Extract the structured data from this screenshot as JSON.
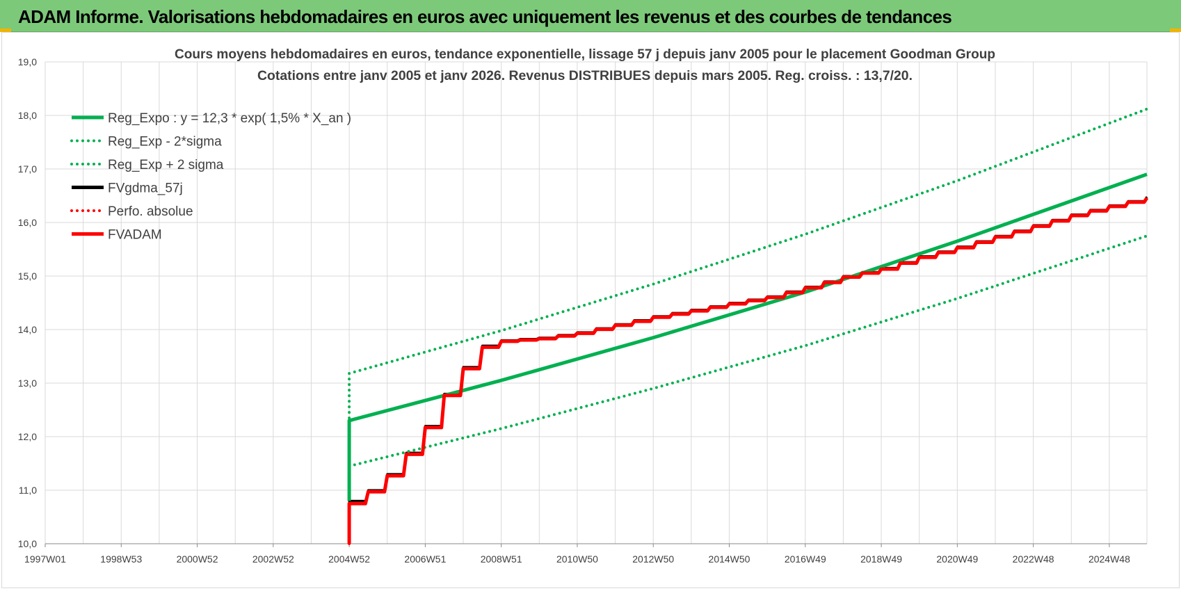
{
  "banner": {
    "title": "ADAM Informe. Valorisations hebdomadaires en euros avec uniquement les revenus et des courbes de tendances"
  },
  "colors": {
    "banner_bg": "#7dc97a",
    "green": "#00b050",
    "black": "#000000",
    "red": "#ff0000",
    "grid": "#d9d9d9"
  },
  "chart_data": {
    "type": "line",
    "title": "Cours moyens hebdomadaires en euros, tendance exponentielle, lissage 57 j depuis janv 2005  pour le placement Goodman Group",
    "subtitle": "Cotations entre janv 2005 et janv 2026. Revenus DISTRIBUES depuis mars 2005.  Reg. croiss. : 13,7/20.",
    "xlabel": "",
    "ylabel": "",
    "ylim": [
      10,
      19
    ],
    "yticks": [
      "10,0",
      "11,0",
      "12,0",
      "13,0",
      "14,0",
      "15,0",
      "16,0",
      "17,0",
      "18,0",
      "19,0"
    ],
    "xlim": [
      1997.0,
      2025.99
    ],
    "xticks": [
      {
        "x": 1997.0,
        "label": "1997W01"
      },
      {
        "x": 1999.0,
        "label": "1998W53"
      },
      {
        "x": 2001.0,
        "label": "2000W52"
      },
      {
        "x": 2003.0,
        "label": "2002W52"
      },
      {
        "x": 2005.0,
        "label": "2004W52"
      },
      {
        "x": 2007.0,
        "label": "2006W51"
      },
      {
        "x": 2009.0,
        "label": "2008W51"
      },
      {
        "x": 2011.0,
        "label": "2010W50"
      },
      {
        "x": 2013.0,
        "label": "2012W50"
      },
      {
        "x": 2015.0,
        "label": "2014W50"
      },
      {
        "x": 2017.0,
        "label": "2016W49"
      },
      {
        "x": 2019.0,
        "label": "2018W49"
      },
      {
        "x": 2021.0,
        "label": "2020W49"
      },
      {
        "x": 2023.0,
        "label": "2022W48"
      },
      {
        "x": 2025.0,
        "label": "2024W48"
      }
    ],
    "grid": true,
    "legend_position": "top-left",
    "series": [
      {
        "name": "Reg_Expo : y = 12,3 * exp( 1,5% *  X_an )",
        "color": "#00b050",
        "style": "solid",
        "points": [
          [
            2005.0,
            10.8
          ],
          [
            2005.0,
            12.3
          ],
          [
            2009.0,
            13.05
          ],
          [
            2013.0,
            13.85
          ],
          [
            2017.0,
            14.7
          ],
          [
            2021.0,
            15.65
          ],
          [
            2025.99,
            16.9
          ]
        ]
      },
      {
        "name": "Reg_Exp - 2*sigma",
        "color": "#00b050",
        "style": "dotted",
        "points": [
          [
            2005.0,
            11.45
          ],
          [
            2009.0,
            12.15
          ],
          [
            2013.0,
            12.9
          ],
          [
            2017.0,
            13.7
          ],
          [
            2021.0,
            14.58
          ],
          [
            2025.99,
            15.75
          ]
        ]
      },
      {
        "name": "Reg_Exp + 2 sigma",
        "color": "#00b050",
        "style": "dotted",
        "points": [
          [
            2005.0,
            12.35
          ],
          [
            2005.0,
            13.18
          ],
          [
            2009.0,
            13.98
          ],
          [
            2013.0,
            14.85
          ],
          [
            2017.0,
            15.78
          ],
          [
            2021.0,
            16.78
          ],
          [
            2025.99,
            18.12
          ]
        ]
      },
      {
        "name": "FVgdma_57j",
        "color": "#000000",
        "style": "solid",
        "points": [
          [
            2005.0,
            10.0
          ],
          [
            2005.0,
            10.8
          ],
          [
            2005.5,
            11.0
          ],
          [
            2006.0,
            11.3
          ],
          [
            2006.5,
            11.7
          ],
          [
            2007.0,
            12.2
          ],
          [
            2007.5,
            12.8
          ],
          [
            2008.0,
            13.3
          ],
          [
            2008.5,
            13.7
          ],
          [
            2009.0,
            13.8
          ],
          [
            2010.0,
            13.85
          ],
          [
            2011.0,
            13.95
          ],
          [
            2012.0,
            14.1
          ],
          [
            2013.0,
            14.25
          ],
          [
            2014.0,
            14.37
          ],
          [
            2015.0,
            14.5
          ],
          [
            2016.0,
            14.62
          ],
          [
            2017.0,
            14.8
          ],
          [
            2018.0,
            15.0
          ],
          [
            2019.0,
            15.15
          ],
          [
            2020.0,
            15.37
          ],
          [
            2021.0,
            15.55
          ],
          [
            2022.0,
            15.75
          ],
          [
            2023.0,
            15.95
          ],
          [
            2024.0,
            16.15
          ],
          [
            2025.0,
            16.32
          ],
          [
            2025.99,
            16.48
          ]
        ]
      },
      {
        "name": "Perfo. absolue",
        "color": "#ff0000",
        "style": "dotted",
        "points": [
          [
            2005.0,
            10.0
          ],
          [
            2005.0,
            10.75
          ],
          [
            2005.5,
            10.97
          ],
          [
            2006.0,
            11.27
          ],
          [
            2006.5,
            11.67
          ],
          [
            2007.0,
            12.17
          ],
          [
            2007.5,
            12.77
          ],
          [
            2008.0,
            13.27
          ],
          [
            2008.5,
            13.67
          ],
          [
            2009.0,
            13.78
          ],
          [
            2010.0,
            13.83
          ],
          [
            2011.0,
            13.93
          ],
          [
            2012.0,
            14.08
          ],
          [
            2013.0,
            14.23
          ],
          [
            2014.0,
            14.35
          ],
          [
            2015.0,
            14.48
          ],
          [
            2016.0,
            14.6
          ],
          [
            2017.0,
            14.78
          ],
          [
            2018.0,
            14.98
          ],
          [
            2019.0,
            15.13
          ],
          [
            2020.0,
            15.35
          ],
          [
            2021.0,
            15.53
          ],
          [
            2022.0,
            15.73
          ],
          [
            2023.0,
            15.93
          ],
          [
            2024.0,
            16.13
          ],
          [
            2025.0,
            16.3
          ],
          [
            2025.99,
            16.46
          ]
        ]
      },
      {
        "name": "FVADAM",
        "color": "#ff0000",
        "style": "solid",
        "points": [
          [
            2005.0,
            10.0
          ],
          [
            2005.0,
            10.75
          ],
          [
            2005.5,
            10.97
          ],
          [
            2006.0,
            11.27
          ],
          [
            2006.5,
            11.67
          ],
          [
            2007.0,
            12.17
          ],
          [
            2007.5,
            12.77
          ],
          [
            2008.0,
            13.27
          ],
          [
            2008.5,
            13.67
          ],
          [
            2009.0,
            13.78
          ],
          [
            2010.0,
            13.83
          ],
          [
            2011.0,
            13.93
          ],
          [
            2012.0,
            14.08
          ],
          [
            2013.0,
            14.23
          ],
          [
            2014.0,
            14.35
          ],
          [
            2015.0,
            14.48
          ],
          [
            2016.0,
            14.6
          ],
          [
            2017.0,
            14.78
          ],
          [
            2018.0,
            14.98
          ],
          [
            2019.0,
            15.13
          ],
          [
            2020.0,
            15.35
          ],
          [
            2021.0,
            15.53
          ],
          [
            2022.0,
            15.73
          ],
          [
            2023.0,
            15.93
          ],
          [
            2024.0,
            16.13
          ],
          [
            2025.0,
            16.3
          ],
          [
            2025.99,
            16.46
          ]
        ]
      }
    ]
  }
}
